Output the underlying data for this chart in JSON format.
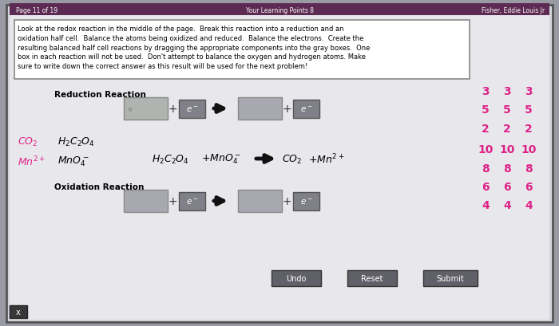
{
  "figsize": [
    7.0,
    4.1
  ],
  "dpi": 100,
  "outer_bg": "#9a9aa5",
  "header_bg": "#5c2a52",
  "header_text_color": "#ffffff",
  "header_left": "Page 11 of 19",
  "header_center": "Your Learning Points 8",
  "header_right": "Fisher, Eddie Louis Jr",
  "content_bg": "#d4d4dc",
  "inner_bg": "#e8e8ec",
  "instr_bg": "#ffffff",
  "instr_border": "#888888",
  "instruction_text": "Look at the redox reaction in the middle of the page.  Break this reaction into a reduction and an\noxidation half cell.  Balance the atoms being oxidized and reduced.  Balance the electrons.  Create the\nresulting balanced half cell reactions by dragging the appropriate components into the gray boxes.  One\nbox in each reaction will not be used.  Don't attempt to balance the oxygen and hydrogen atoms. Make\nsure to write down the correct answer as this result will be used for the next problem!",
  "reduction_label": "Reduction Reaction",
  "oxidation_label": "Oxidation Reaction",
  "gray_box1_color": "#b8b8b8",
  "gray_box2_color": "#a8a8b0",
  "electron_box_color": "#808088",
  "pink_color": "#dd2288",
  "numbers_right": [
    3,
    5,
    2,
    10,
    8,
    6,
    4
  ],
  "button_bg": "#606068",
  "button_text_color": "#ffffff",
  "buttons": [
    "Undo",
    "Reset",
    "Submit"
  ],
  "dark_box_bg": "#383838",
  "arrow_color": "#111111"
}
